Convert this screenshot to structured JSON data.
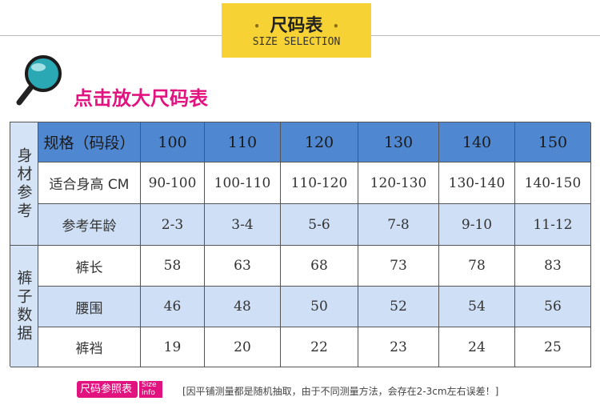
{
  "header": {
    "title": "尺码表",
    "subtitle": "SIZE SELECTION"
  },
  "zoom_link": "点击放大尺码表",
  "table": {
    "groups": [
      "身材参考",
      "裤子数据"
    ],
    "header": [
      "规格（码段）",
      100,
      110,
      120,
      130,
      140,
      150
    ],
    "rows": [
      [
        "适合身高 CM",
        "90-100",
        "100-110",
        "110-120",
        "120-130",
        "130-140",
        "140-150"
      ],
      [
        "参考年龄",
        "2-3",
        "3-4",
        "5-6",
        "7-8",
        "9-10",
        "11-12"
      ],
      [
        "裤长",
        58,
        63,
        68,
        73,
        78,
        83
      ],
      [
        "腰围",
        46,
        48,
        50,
        52,
        54,
        56
      ],
      [
        "裤裆",
        19,
        20,
        22,
        23,
        24,
        25
      ]
    ]
  },
  "footer": {
    "badge": "尺码参照表",
    "badge_en": [
      "Size",
      "info"
    ],
    "note": "[因平铺测量都是随机抽取，由于不同测量方法，会存在2-3cm左右误差！]"
  }
}
